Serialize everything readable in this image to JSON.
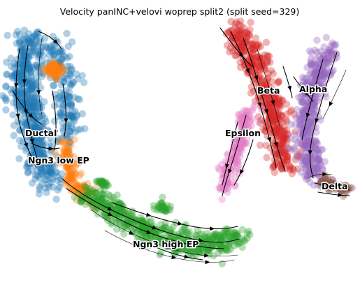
{
  "chart_data": {
    "type": "scatter",
    "title": "Velocity panINC+velovi woprep split2 (split seed=329)",
    "xlabel": "",
    "ylabel": "",
    "axes_visible": false,
    "grid": false,
    "legend": "on-data",
    "overlay": "velocity streamlines with arrowheads",
    "clusters": [
      {
        "name": "Ductal",
        "color": "#1f77b4"
      },
      {
        "name": "Ngn3 low EP",
        "color": "#ff7f0e"
      },
      {
        "name": "Ngn3 high EP",
        "color": "#2ca02c"
      },
      {
        "name": "Beta",
        "color": "#d62728"
      },
      {
        "name": "Alpha",
        "color": "#9467bd"
      },
      {
        "name": "Epsilon",
        "color": "#e377c2"
      },
      {
        "name": "Delta",
        "color": "#8c564b"
      }
    ]
  }
}
